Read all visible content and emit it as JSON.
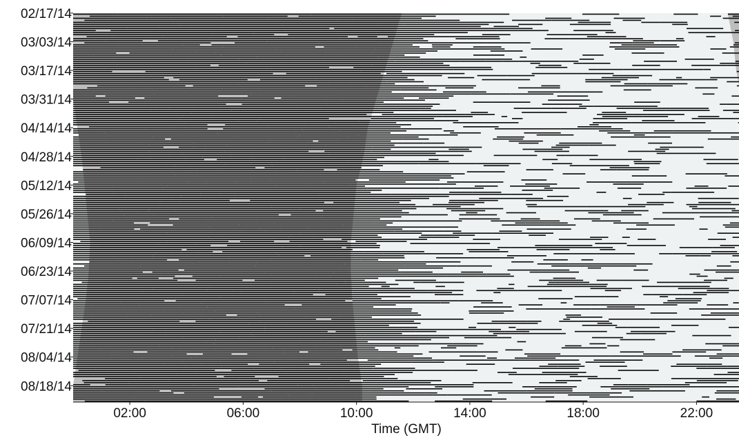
{
  "chart_data": {
    "type": "raster-actogram",
    "title": "",
    "xlabel": "Time (GMT)",
    "ylabel": "",
    "x_ticks": [
      "02:00",
      "06:00",
      "10:00",
      "14:00",
      "18:00",
      "22:00"
    ],
    "x_tick_hours": [
      2,
      6,
      10,
      14,
      18,
      22
    ],
    "xlim_hours": [
      0,
      23.5
    ],
    "y_ticks": [
      "02/17/14",
      "03/03/14",
      "03/17/14",
      "03/31/14",
      "04/14/14",
      "04/28/14",
      "05/12/14",
      "05/26/14",
      "06/09/14",
      "06/23/14",
      "07/07/14",
      "07/21/14",
      "08/04/14",
      "08/18/14"
    ],
    "date_range": [
      "02/17/14",
      "08/26/14"
    ],
    "days": 190,
    "night_shading": {
      "color": "#bdbdbd",
      "day_color": "#eef2f2",
      "sunrise_hours": [
        {
          "date": "02/17/14",
          "hour": 11.6
        },
        {
          "date": "03/03/14",
          "hour": 11.3
        },
        {
          "date": "03/17/14",
          "hour": 11.0
        },
        {
          "date": "03/31/14",
          "hour": 10.7
        },
        {
          "date": "04/14/14",
          "hour": 10.4
        },
        {
          "date": "04/28/14",
          "hour": 10.25
        },
        {
          "date": "05/12/14",
          "hour": 10.0
        },
        {
          "date": "05/26/14",
          "hour": 9.9
        },
        {
          "date": "06/09/14",
          "hour": 9.8
        },
        {
          "date": "06/23/14",
          "hour": 9.8
        },
        {
          "date": "07/07/14",
          "hour": 9.85
        },
        {
          "date": "07/21/14",
          "hour": 9.95
        },
        {
          "date": "08/04/14",
          "hour": 10.05
        },
        {
          "date": "08/18/14",
          "hour": 10.2
        }
      ],
      "evening_dark_start_hours": [
        {
          "date": "02/17/14",
          "hour": 23.1
        },
        {
          "date": "03/03/14",
          "hour": 23.3
        },
        {
          "date": "03/17/14",
          "hour": 23.4
        },
        {
          "date": "03/31/14",
          "hour": 23.6
        }
      ],
      "early_morning_light_end_hours": [
        {
          "date": "03/31/14",
          "hour": 0.0
        },
        {
          "date": "04/14/14",
          "hour": 0.15
        },
        {
          "date": "04/28/14",
          "hour": 0.3
        },
        {
          "date": "05/12/14",
          "hour": 0.4
        },
        {
          "date": "05/26/14",
          "hour": 0.5
        },
        {
          "date": "06/09/14",
          "hour": 0.6
        },
        {
          "date": "06/23/14",
          "hour": 0.55
        },
        {
          "date": "07/07/14",
          "hour": 0.45
        },
        {
          "date": "07/21/14",
          "hour": 0.3
        },
        {
          "date": "08/04/14",
          "hour": 0.15
        },
        {
          "date": "08/18/14",
          "hour": 0.0
        }
      ]
    },
    "activity_density": {
      "night": 0.9,
      "day": 0.35
    },
    "grid": false,
    "legend": "none"
  }
}
